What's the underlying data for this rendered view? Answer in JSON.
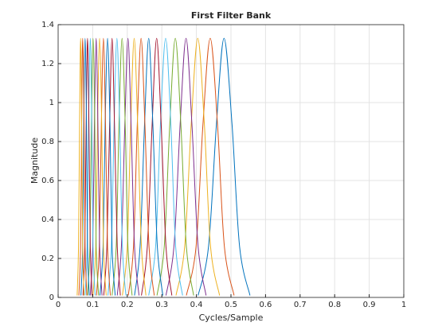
{
  "chart_data": {
    "type": "line",
    "title": "First Filter Bank",
    "xlabel": "Cycles/Sample",
    "ylabel": "Magnitude",
    "xlim": [
      0,
      1
    ],
    "ylim": [
      0,
      1.4
    ],
    "xticks": [
      0,
      0.1,
      0.2,
      0.3,
      0.4,
      0.5,
      0.6,
      0.7,
      0.8,
      0.9,
      1
    ],
    "yticks": [
      0,
      0.2,
      0.4,
      0.6,
      0.8,
      1,
      1.2,
      1.4
    ],
    "grid": true,
    "series": [
      {
        "color": "#0072bd",
        "x": [
          0.405,
          0.435,
          0.458,
          0.48,
          0.503,
          0.525,
          0.555
        ],
        "values": [
          0.01,
          0.26,
          0.89,
          1.33,
          0.89,
          0.26,
          0.01
        ]
      },
      {
        "color": "#d95319",
        "x": [
          0.371,
          0.399,
          0.419,
          0.44,
          0.461,
          0.481,
          0.509
        ],
        "values": [
          0.01,
          0.26,
          0.89,
          1.33,
          0.89,
          0.26,
          0.01
        ]
      },
      {
        "color": "#edb120",
        "x": [
          0.341,
          0.366,
          0.385,
          0.404,
          0.423,
          0.441,
          0.467
        ],
        "values": [
          0.01,
          0.26,
          0.89,
          1.33,
          0.89,
          0.26,
          0.01
        ]
      },
      {
        "color": "#7e2f8e",
        "x": [
          0.312,
          0.335,
          0.353,
          0.37,
          0.387,
          0.405,
          0.428
        ],
        "values": [
          0.01,
          0.26,
          0.89,
          1.33,
          0.89,
          0.26,
          0.01
        ]
      },
      {
        "color": "#77ac30",
        "x": [
          0.286,
          0.307,
          0.323,
          0.339,
          0.355,
          0.371,
          0.392
        ],
        "values": [
          0.01,
          0.26,
          0.89,
          1.33,
          0.89,
          0.26,
          0.01
        ]
      },
      {
        "color": "#4dbeee",
        "x": [
          0.262,
          0.282,
          0.296,
          0.311,
          0.326,
          0.34,
          0.36
        ],
        "values": [
          0.01,
          0.26,
          0.89,
          1.33,
          0.89,
          0.26,
          0.01
        ]
      },
      {
        "color": "#a2142f",
        "x": [
          0.241,
          0.258,
          0.272,
          0.285,
          0.298,
          0.312,
          0.329
        ],
        "values": [
          0.01,
          0.26,
          0.89,
          1.33,
          0.89,
          0.26,
          0.01
        ]
      },
      {
        "color": "#0072bd",
        "x": [
          0.221,
          0.237,
          0.25,
          0.262,
          0.274,
          0.287,
          0.303
        ],
        "values": [
          0.01,
          0.26,
          0.89,
          1.33,
          0.89,
          0.26,
          0.01
        ]
      },
      {
        "color": "#d95319",
        "x": [
          0.203,
          0.218,
          0.229,
          0.24,
          0.251,
          0.263,
          0.278
        ],
        "values": [
          0.01,
          0.26,
          0.89,
          1.33,
          0.89,
          0.26,
          0.01
        ]
      },
      {
        "color": "#edb120",
        "x": [
          0.186,
          0.2,
          0.21,
          0.22,
          0.23,
          0.241,
          0.254
        ],
        "values": [
          0.01,
          0.26,
          0.89,
          1.33,
          0.89,
          0.26,
          0.01
        ]
      },
      {
        "color": "#7e2f8e",
        "x": [
          0.171,
          0.183,
          0.193,
          0.202,
          0.211,
          0.221,
          0.234
        ],
        "values": [
          0.01,
          0.26,
          0.89,
          1.33,
          0.89,
          0.26,
          0.01
        ]
      },
      {
        "color": "#77ac30",
        "x": [
          0.156,
          0.168,
          0.176,
          0.185,
          0.194,
          0.202,
          0.214
        ],
        "values": [
          0.01,
          0.26,
          0.89,
          1.33,
          0.89,
          0.26,
          0.01
        ]
      },
      {
        "color": "#4dbeee",
        "x": [
          0.144,
          0.154,
          0.162,
          0.17,
          0.178,
          0.186,
          0.196
        ],
        "values": [
          0.01,
          0.26,
          0.89,
          1.33,
          0.89,
          0.26,
          0.01
        ]
      },
      {
        "color": "#a2142f",
        "x": [
          0.132,
          0.141,
          0.149,
          0.156,
          0.163,
          0.171,
          0.18
        ],
        "values": [
          0.01,
          0.26,
          0.89,
          1.33,
          0.89,
          0.26,
          0.01
        ]
      },
      {
        "color": "#0072bd",
        "x": [
          0.121,
          0.13,
          0.136,
          0.143,
          0.15,
          0.156,
          0.165
        ],
        "values": [
          0.01,
          0.26,
          0.89,
          1.33,
          0.89,
          0.26,
          0.01
        ]
      },
      {
        "color": "#d95319",
        "x": [
          0.111,
          0.119,
          0.125,
          0.131,
          0.137,
          0.143,
          0.151
        ],
        "values": [
          0.01,
          0.26,
          0.89,
          1.33,
          0.89,
          0.26,
          0.01
        ]
      },
      {
        "color": "#edb120",
        "x": [
          0.101,
          0.109,
          0.114,
          0.12,
          0.126,
          0.131,
          0.139
        ],
        "values": [
          0.01,
          0.26,
          0.89,
          1.33,
          0.89,
          0.26,
          0.01
        ]
      },
      {
        "color": "#7e2f8e",
        "x": [
          0.093,
          0.1,
          0.105,
          0.11,
          0.115,
          0.12,
          0.127
        ],
        "values": [
          0.01,
          0.26,
          0.89,
          1.33,
          0.89,
          0.26,
          0.01
        ]
      },
      {
        "color": "#77ac30",
        "x": [
          0.085,
          0.092,
          0.096,
          0.101,
          0.106,
          0.11,
          0.117
        ],
        "values": [
          0.01,
          0.26,
          0.89,
          1.33,
          0.89,
          0.26,
          0.01
        ]
      },
      {
        "color": "#4dbeee",
        "x": [
          0.078,
          0.084,
          0.088,
          0.093,
          0.097,
          0.101,
          0.107
        ],
        "values": [
          0.01,
          0.26,
          0.89,
          1.33,
          0.89,
          0.26,
          0.01
        ]
      },
      {
        "color": "#a2142f",
        "x": [
          0.072,
          0.077,
          0.081,
          0.085,
          0.089,
          0.093,
          0.098
        ],
        "values": [
          0.01,
          0.26,
          0.89,
          1.33,
          0.89,
          0.26,
          0.01
        ]
      },
      {
        "color": "#0072bd",
        "x": [
          0.066,
          0.071,
          0.074,
          0.078,
          0.082,
          0.085,
          0.09
        ],
        "values": [
          0.01,
          0.26,
          0.89,
          1.33,
          0.89,
          0.26,
          0.01
        ]
      },
      {
        "color": "#d95319",
        "x": [
          0.06,
          0.065,
          0.068,
          0.071,
          0.075,
          0.078,
          0.083
        ],
        "values": [
          0.01,
          0.26,
          0.89,
          1.33,
          0.89,
          0.26,
          0.01
        ]
      },
      {
        "color": "#edb120",
        "x": [
          0.055,
          0.059,
          0.062,
          0.065,
          0.068,
          0.071,
          0.075
        ],
        "values": [
          0.01,
          0.26,
          0.89,
          1.33,
          0.89,
          0.26,
          0.01
        ]
      }
    ]
  }
}
